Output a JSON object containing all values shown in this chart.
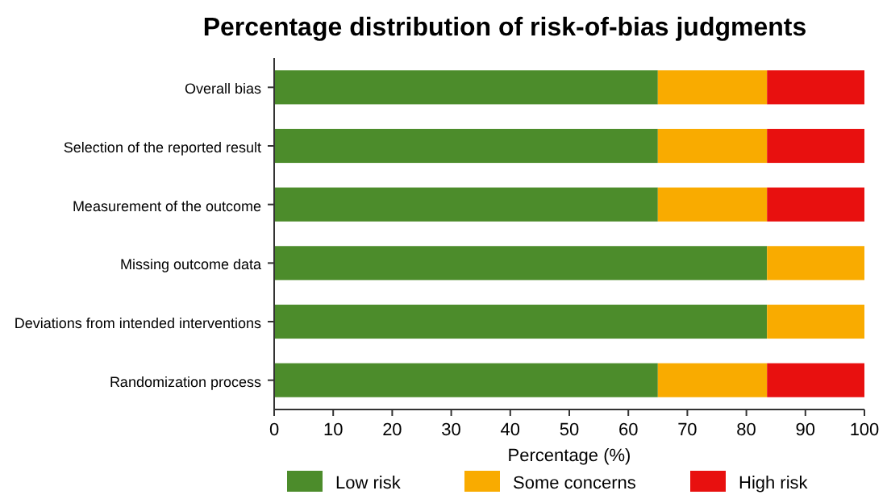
{
  "chart_data": {
    "type": "bar",
    "title": "Percentage distribution of risk-of-bias judgments",
    "orientation": "horizontal",
    "stacked": true,
    "xlabel": "Percentage (%)",
    "categories": [
      "Overall bias",
      "Selection of the reported result",
      "Measurement of the outcome",
      "Missing outcome data",
      "Deviations from intended interventions",
      "Randomization process"
    ],
    "series": [
      {
        "name": "Low risk",
        "color": "#4c8c2b",
        "values": [
          65,
          65,
          65,
          83.5,
          83.5,
          65
        ]
      },
      {
        "name": "Some concerns",
        "color": "#f9ab00",
        "values": [
          18.5,
          18.5,
          18.5,
          16.5,
          16.5,
          18.5
        ]
      },
      {
        "name": "High risk",
        "color": "#e8100f",
        "values": [
          16.5,
          16.5,
          16.5,
          0,
          0,
          16.5
        ]
      }
    ],
    "xlim": [
      0,
      100
    ],
    "xticks": [
      0,
      10,
      20,
      30,
      40,
      50,
      60,
      70,
      80,
      90,
      100
    ],
    "grid": false,
    "legend": "bottom"
  }
}
